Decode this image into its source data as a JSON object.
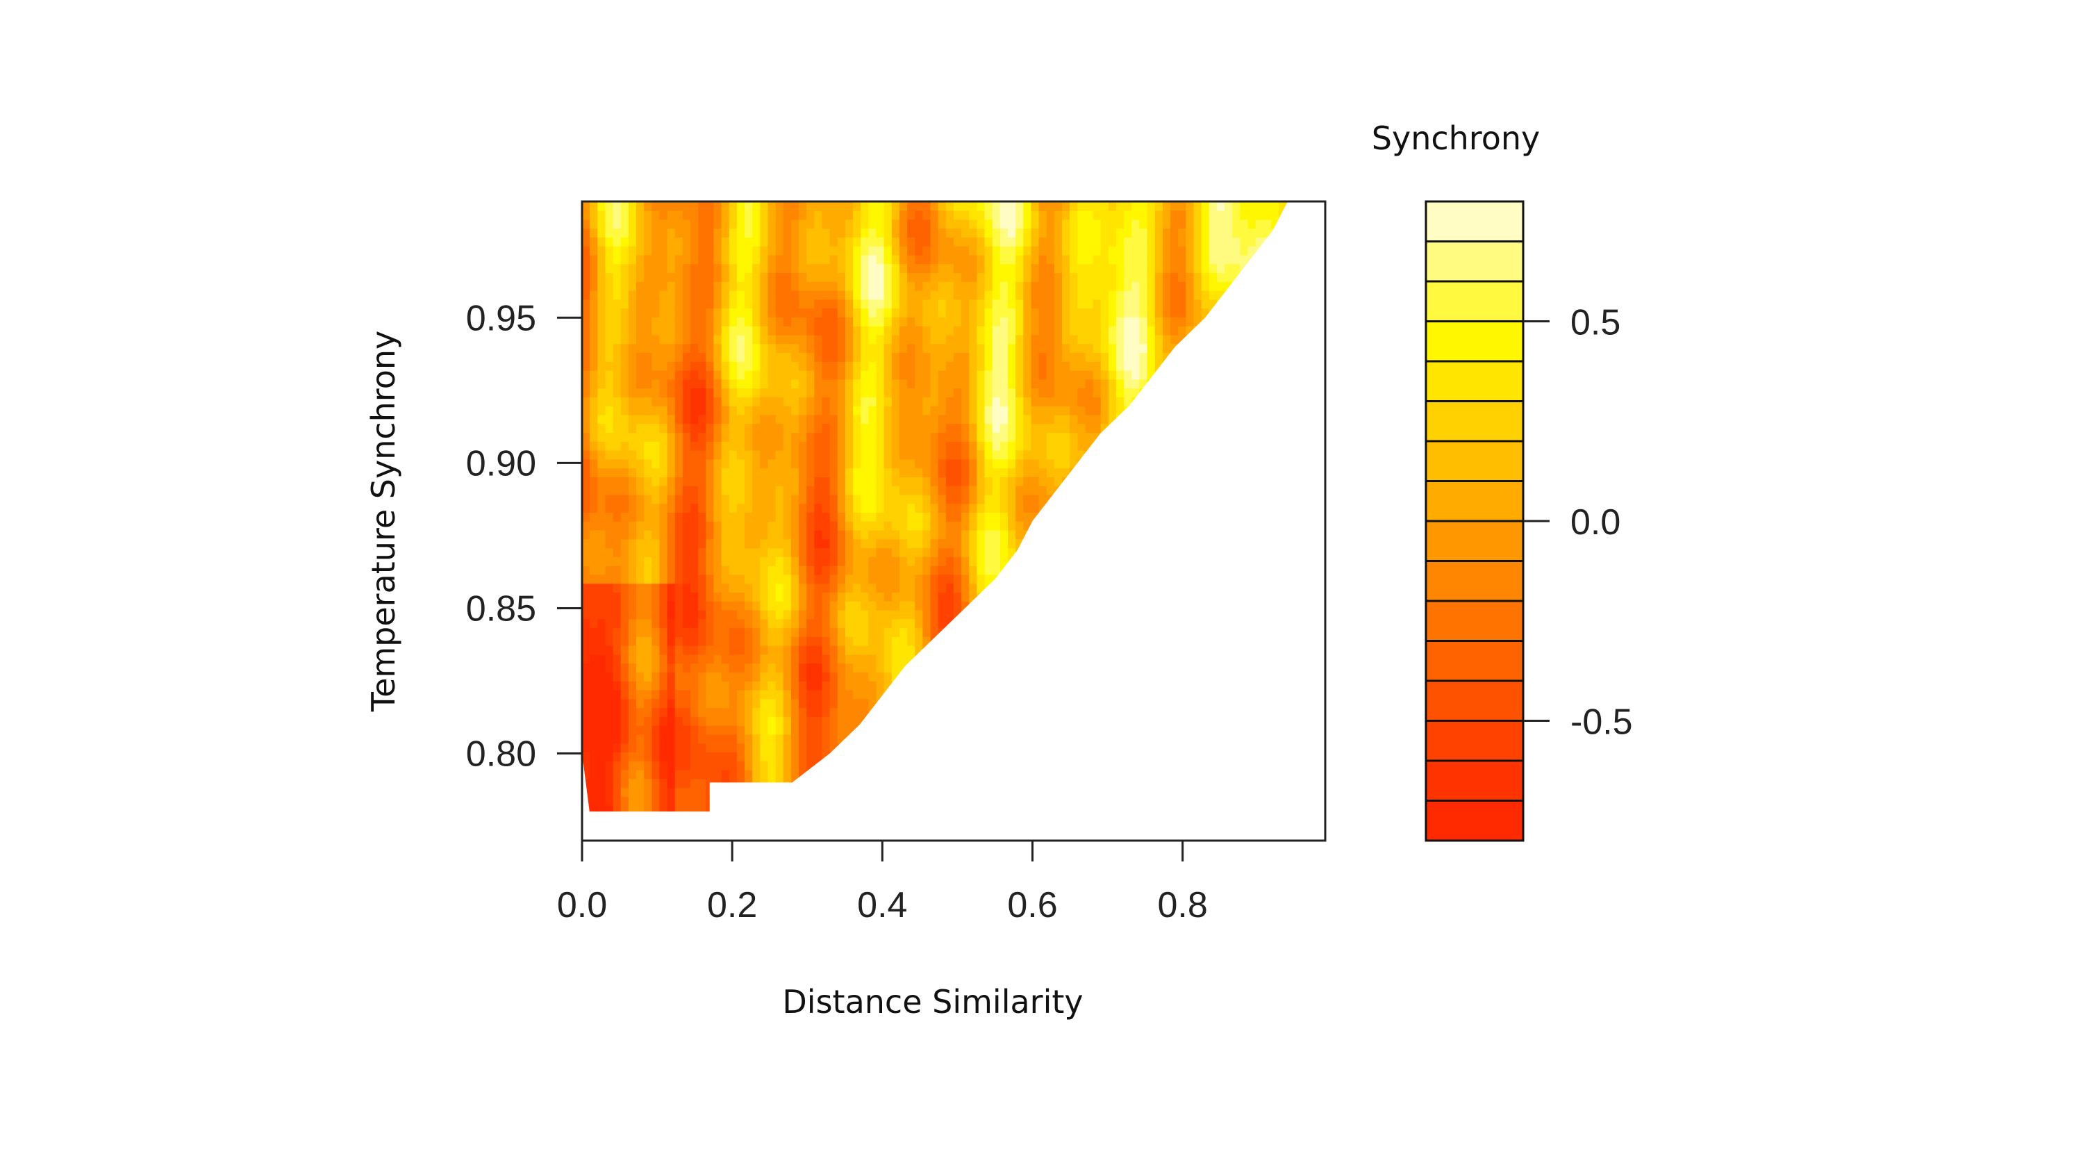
{
  "chart_data": {
    "type": "heatmap",
    "xlabel": "Distance Similarity",
    "ylabel": "Temperature Synchrony",
    "xlim": [
      0.0,
      0.99
    ],
    "ylim": [
      0.77,
      0.99
    ],
    "x_ticks": [
      "0.0",
      "0.2",
      "0.4",
      "0.6",
      "0.8"
    ],
    "y_ticks": [
      "0.80",
      "0.85",
      "0.90",
      "0.95"
    ],
    "colorbar": {
      "title": "Synchrony",
      "range": [
        -0.8,
        0.8
      ],
      "ticks": [
        "0.5",
        "0.0",
        "-0.5"
      ],
      "levels": [
        -0.8,
        -0.7,
        -0.6,
        -0.5,
        -0.4,
        -0.3,
        -0.2,
        -0.1,
        0.0,
        0.1,
        0.2,
        0.3,
        0.4,
        0.5,
        0.6,
        0.7,
        0.8
      ],
      "colors": [
        "#ff2a00",
        "#ff3300",
        "#ff4200",
        "#ff5200",
        "#ff6300",
        "#ff7300",
        "#ff8600",
        "#ff9800",
        "#ffab00",
        "#ffbe00",
        "#ffd100",
        "#ffe500",
        "#fff700",
        "#fffa40",
        "#fffb80",
        "#fffdc4"
      ]
    },
    "data_boundary": [
      [
        0.01,
        0.78
      ],
      [
        0.17,
        0.78
      ],
      [
        0.17,
        0.79
      ],
      [
        0.28,
        0.79
      ],
      [
        0.33,
        0.8
      ],
      [
        0.37,
        0.81
      ],
      [
        0.4,
        0.82
      ],
      [
        0.43,
        0.83
      ],
      [
        0.47,
        0.84
      ],
      [
        0.51,
        0.85
      ],
      [
        0.55,
        0.86
      ],
      [
        0.58,
        0.87
      ],
      [
        0.6,
        0.88
      ],
      [
        0.63,
        0.89
      ],
      [
        0.66,
        0.9
      ],
      [
        0.69,
        0.91
      ],
      [
        0.73,
        0.92
      ],
      [
        0.76,
        0.93
      ],
      [
        0.79,
        0.94
      ],
      [
        0.83,
        0.95
      ],
      [
        0.86,
        0.96
      ],
      [
        0.89,
        0.97
      ],
      [
        0.92,
        0.98
      ],
      [
        0.94,
        0.99
      ],
      [
        0.0,
        0.99
      ],
      [
        0.0,
        0.8
      ]
    ]
  }
}
